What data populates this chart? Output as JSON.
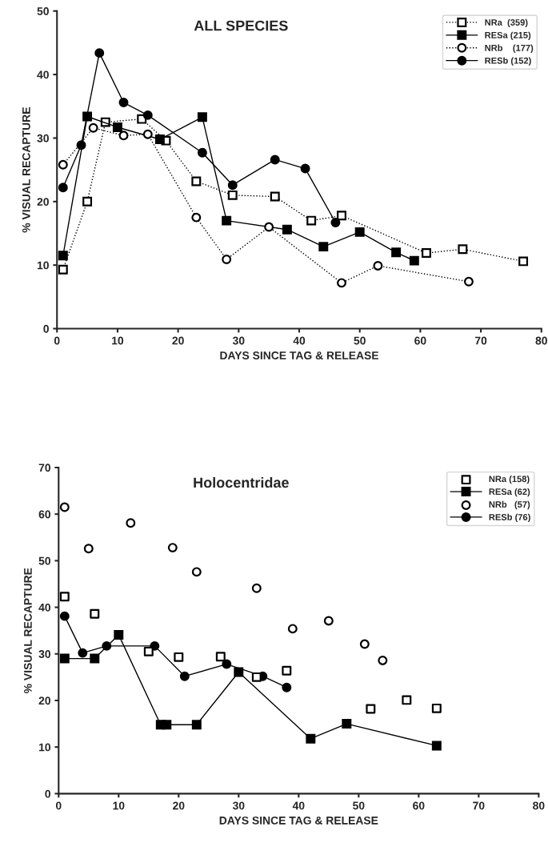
{
  "chart_data": [
    {
      "type": "line",
      "title": "ALL SPECIES",
      "xlabel": "DAYS SINCE TAG & RELEASE",
      "ylabel": "% VISUAL RECAPTURE",
      "xlim": [
        0,
        80
      ],
      "xticks": [
        0,
        10,
        20,
        30,
        40,
        50,
        60,
        70,
        80
      ],
      "ylim": [
        0,
        50
      ],
      "yticks": [
        0,
        10,
        20,
        30,
        40,
        50
      ],
      "grid": false,
      "legend": "top right",
      "series": [
        {
          "name": "NRa  (359)",
          "color": "#ffffff",
          "marker": "square",
          "line_style": "dotted",
          "x": [
            1,
            5,
            8,
            14,
            18,
            23,
            29,
            36,
            42,
            47,
            61,
            67,
            77
          ],
          "values": [
            9.3,
            20,
            32.5,
            33,
            29.6,
            23.2,
            21,
            20.8,
            17,
            17.8,
            11.9,
            12.5,
            10.6
          ]
        },
        {
          "name": "RESa (215)",
          "color": "#000000",
          "marker": "square",
          "line_style": "solid",
          "x": [
            1,
            5,
            10,
            17,
            24,
            28,
            38,
            44,
            50,
            56,
            59
          ],
          "values": [
            11.5,
            33.4,
            31.7,
            29.8,
            33.3,
            17,
            15.6,
            12.9,
            15.2,
            12,
            10.7
          ]
        },
        {
          "name": "NRb    (177)",
          "color": "#ffffff",
          "marker": "circle",
          "line_style": "dotted",
          "x": [
            1,
            6,
            11,
            15,
            23,
            28,
            35,
            47,
            53,
            68
          ],
          "values": [
            25.8,
            31.6,
            30.4,
            30.6,
            17.5,
            10.9,
            16,
            7.2,
            9.9,
            7.4
          ]
        },
        {
          "name": "RESb (152)",
          "color": "#000000",
          "marker": "circle",
          "line_style": "solid",
          "x": [
            1,
            4,
            7,
            11,
            15,
            24,
            29,
            36,
            41,
            46
          ],
          "values": [
            22.2,
            28.9,
            43.4,
            35.6,
            33.6,
            27.7,
            22.6,
            26.6,
            25.2,
            16.7
          ]
        }
      ]
    },
    {
      "type": "line",
      "title": "Holocentridae",
      "xlabel": "DAYS SINCE TAG & RELEASE",
      "ylabel": "% VISUAL RECAPTURE",
      "xlim": [
        0,
        80
      ],
      "xticks": [
        0,
        10,
        20,
        30,
        40,
        50,
        60,
        70,
        80
      ],
      "ylim": [
        0,
        70
      ],
      "yticks": [
        0,
        10,
        20,
        30,
        40,
        50,
        60,
        70
      ],
      "grid": false,
      "legend": "top right",
      "series": [
        {
          "name": "NRa (158)",
          "type": "scatter",
          "color": "#ffffff",
          "marker": "square",
          "x": [
            1,
            6,
            15,
            20,
            27,
            33,
            38,
            52,
            58,
            63
          ],
          "values": [
            42.3,
            38.6,
            30.5,
            29.3,
            29.4,
            25,
            26.4,
            18.2,
            20.1,
            18.3
          ]
        },
        {
          "name": "RESa (62)",
          "color": "#000000",
          "marker": "square",
          "line_style": "solid",
          "x": [
            1,
            6,
            10,
            17,
            18,
            23,
            30,
            42,
            48,
            63
          ],
          "values": [
            29,
            29,
            34.1,
            14.8,
            14.8,
            14.8,
            26.1,
            11.8,
            15,
            10.3
          ]
        },
        {
          "name": "NRb   (57)",
          "type": "scatter",
          "color": "#ffffff",
          "marker": "circle",
          "x": [
            1,
            5,
            12,
            19,
            23,
            33,
            39,
            45,
            51,
            54
          ],
          "values": [
            61.5,
            52.6,
            58.1,
            52.8,
            47.6,
            44.1,
            35.4,
            37.1,
            32.1,
            28.6
          ]
        },
        {
          "name": "RESb (76)",
          "color": "#000000",
          "marker": "circle",
          "line_style": "solid",
          "x": [
            1,
            4,
            8,
            16,
            21,
            28,
            34,
            38
          ],
          "values": [
            38.1,
            30.2,
            31.7,
            31.7,
            25.2,
            27.8,
            25.2,
            22.8
          ]
        }
      ]
    }
  ]
}
